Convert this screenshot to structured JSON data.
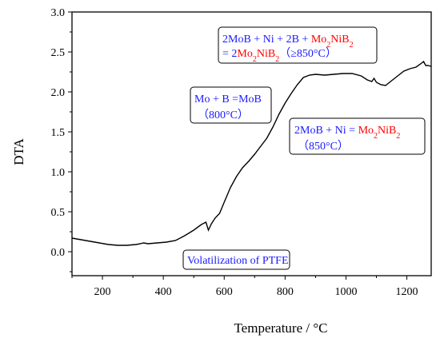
{
  "chart_data": {
    "type": "line",
    "title": "",
    "xlabel": "Temperature / °C",
    "ylabel": "DTA",
    "xlim": [
      100,
      1280
    ],
    "ylim": [
      -0.3,
      3.0
    ],
    "x_ticks": [
      "200",
      "400",
      "600",
      "800",
      "1000",
      "1200"
    ],
    "y_ticks": [
      "0.0",
      "0.5",
      "1.0",
      "1.5",
      "2.0",
      "2.5",
      "3.0"
    ],
    "grid": false,
    "legend": "none",
    "series": [
      {
        "color": "#000000",
        "points": [
          [
            100,
            0.17
          ],
          [
            130,
            0.15
          ],
          [
            160,
            0.13
          ],
          [
            190,
            0.11
          ],
          [
            220,
            0.09
          ],
          [
            250,
            0.08
          ],
          [
            280,
            0.08
          ],
          [
            310,
            0.09
          ],
          [
            325,
            0.1
          ],
          [
            335,
            0.11
          ],
          [
            350,
            0.1
          ],
          [
            380,
            0.11
          ],
          [
            410,
            0.12
          ],
          [
            440,
            0.14
          ],
          [
            470,
            0.2
          ],
          [
            500,
            0.27
          ],
          [
            525,
            0.34
          ],
          [
            540,
            0.37
          ],
          [
            548,
            0.27
          ],
          [
            558,
            0.35
          ],
          [
            570,
            0.42
          ],
          [
            585,
            0.48
          ],
          [
            600,
            0.62
          ],
          [
            620,
            0.8
          ],
          [
            640,
            0.94
          ],
          [
            660,
            1.05
          ],
          [
            680,
            1.13
          ],
          [
            700,
            1.22
          ],
          [
            720,
            1.32
          ],
          [
            740,
            1.42
          ],
          [
            760,
            1.56
          ],
          [
            780,
            1.72
          ],
          [
            800,
            1.86
          ],
          [
            820,
            1.98
          ],
          [
            840,
            2.09
          ],
          [
            860,
            2.18
          ],
          [
            880,
            2.21
          ],
          [
            900,
            2.22
          ],
          [
            930,
            2.21
          ],
          [
            960,
            2.22
          ],
          [
            990,
            2.23
          ],
          [
            1020,
            2.23
          ],
          [
            1050,
            2.2
          ],
          [
            1070,
            2.15
          ],
          [
            1085,
            2.13
          ],
          [
            1092,
            2.17
          ],
          [
            1100,
            2.12
          ],
          [
            1115,
            2.09
          ],
          [
            1130,
            2.08
          ],
          [
            1150,
            2.14
          ],
          [
            1170,
            2.2
          ],
          [
            1190,
            2.26
          ],
          [
            1210,
            2.29
          ],
          [
            1230,
            2.31
          ],
          [
            1245,
            2.35
          ],
          [
            1255,
            2.38
          ],
          [
            1262,
            2.33
          ],
          [
            1270,
            2.33
          ],
          [
            1280,
            2.32
          ]
        ]
      }
    ],
    "annotations": {
      "reaction1": {
        "line1": {
          "a": "2MoB + Ni + 2B + ",
          "b": "Mo",
          "c": "2",
          "d": "NiB",
          "e": "2"
        },
        "line2": {
          "a": "= 2",
          "b": "Mo",
          "c": "2",
          "d": "NiB",
          "e": "2",
          "f": "（≥850°C）"
        }
      },
      "reaction2": {
        "line1": "Mo + B =MoB",
        "line2": "（800°C）"
      },
      "reaction3": {
        "line1": {
          "a": "2MoB + Ni = ",
          "b": "Mo",
          "c": "2",
          "d": "NiB",
          "e": "2"
        },
        "line2": "（850°C）"
      },
      "reaction4": {
        "text": "Volatilization of PTFE"
      }
    },
    "colors": {
      "line": "#000000",
      "annotation_blue": "#1a1aff",
      "annotation_red": "#ff0000",
      "box_border": "#000000"
    }
  }
}
